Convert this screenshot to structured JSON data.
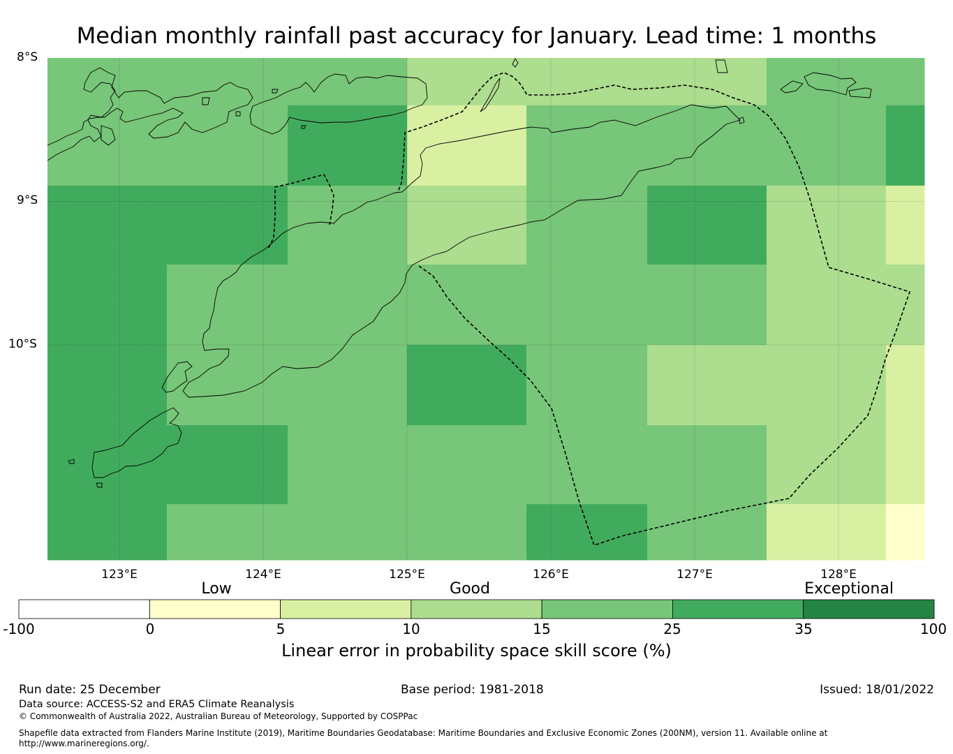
{
  "title": "Median monthly rainfall past accuracy for January. Lead time: 1 months",
  "axes": {
    "lat_labels": [
      "8°S",
      "9°S",
      "10°S"
    ],
    "lon_labels": [
      "123°E",
      "124°E",
      "125°E",
      "126°E",
      "127°E",
      "128°E"
    ]
  },
  "colorbar": {
    "category_labels": [
      "Low",
      "Good",
      "Exceptional"
    ],
    "ticks": [
      "-100",
      "0",
      "5",
      "10",
      "15",
      "25",
      "35",
      "100"
    ],
    "bins": [
      {
        "from": -100,
        "to": 0,
        "color": "#ffffff"
      },
      {
        "from": 0,
        "to": 5,
        "color": "#ffffcc"
      },
      {
        "from": 5,
        "to": 10,
        "color": "#d9f0a3"
      },
      {
        "from": 10,
        "to": 15,
        "color": "#addd8e"
      },
      {
        "from": 15,
        "to": 25,
        "color": "#78c679"
      },
      {
        "from": 25,
        "to": 35,
        "color": "#41ab5d"
      },
      {
        "from": 35,
        "to": 100,
        "color": "#238443"
      }
    ],
    "title": "Linear error in probability space skill score (%)"
  },
  "chart_data": {
    "type": "heatmap",
    "title": "Median monthly rainfall past accuracy for January. Lead time: 1 months",
    "lon_range": [
      122.5,
      128.6
    ],
    "lat_range": [
      -11.5,
      -8.0
    ],
    "lon_edges": [
      122.5,
      123.33,
      124.17,
      125.0,
      125.83,
      126.67,
      127.5,
      128.33,
      128.6
    ],
    "lat_edges": [
      -8.0,
      -8.33,
      -8.89,
      -9.44,
      -10.0,
      -10.56,
      -11.11,
      -11.5
    ],
    "class_grid": [
      [
        4,
        4,
        4,
        3,
        3,
        3,
        4,
        4
      ],
      [
        4,
        4,
        5,
        2,
        4,
        4,
        4,
        5
      ],
      [
        5,
        5,
        4,
        3,
        4,
        5,
        3,
        2
      ],
      [
        5,
        4,
        4,
        4,
        4,
        4,
        3,
        3
      ],
      [
        5,
        4,
        4,
        5,
        4,
        3,
        3,
        2
      ],
      [
        5,
        5,
        4,
        4,
        4,
        4,
        3,
        2
      ],
      [
        5,
        4,
        4,
        4,
        5,
        4,
        2,
        1
      ]
    ]
  },
  "footer": {
    "run_date": "Run date: 25 December",
    "base_period": "Base period: 1981-2018",
    "issued": "Issued: 18/01/2022",
    "data_source": "Data source: ACCESS-S2 and ERA5 Climate Reanalysis",
    "copyright": "© Commonwealth of Australia 2022, Australian Bureau of Meteorology, Supported by COSPPac",
    "shapefile_line1": "Shapefile data extracted from Flanders Marine Institute (2019), Maritime Boundaries Geodatabase: Maritime Boundaries and Exclusive Economic Zones (200NM), version 11. Available online at",
    "shapefile_line2": "http://www.marineregions.org/."
  }
}
